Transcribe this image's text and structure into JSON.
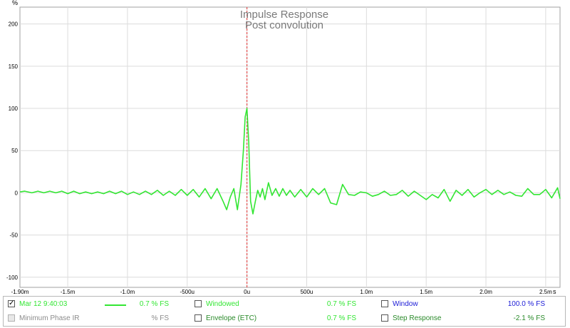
{
  "chart_data": {
    "type": "line",
    "title": "Impulse Response",
    "subtitle": "Post convolution",
    "ylabel": "%",
    "xlabel": "",
    "xunit": "s",
    "xlim": [
      -0.0019,
      0.00262
    ],
    "ylim": [
      -112,
      220
    ],
    "x_ticks": [
      {
        "v": -0.0019,
        "label": "-1.90m"
      },
      {
        "v": -0.0015,
        "label": "-1.5m"
      },
      {
        "v": -0.001,
        "label": "-1.0m"
      },
      {
        "v": -0.0005,
        "label": "-500u"
      },
      {
        "v": 0,
        "label": "0u"
      },
      {
        "v": 0.0005,
        "label": "500u"
      },
      {
        "v": 0.001,
        "label": "1.0m"
      },
      {
        "v": 0.0015,
        "label": "1.5m"
      },
      {
        "v": 0.002,
        "label": "2.0m"
      },
      {
        "v": 0.0025,
        "label": "2.5m"
      }
    ],
    "y_ticks": [
      {
        "v": 200,
        "label": "200"
      },
      {
        "v": 150,
        "label": "150"
      },
      {
        "v": 100,
        "label": "100"
      },
      {
        "v": 50,
        "label": "50"
      },
      {
        "v": 0,
        "label": "0"
      },
      {
        "v": -50,
        "label": "-50"
      },
      {
        "v": -100,
        "label": "-100"
      }
    ],
    "grid": true,
    "marker_x": 0,
    "series": [
      {
        "name": "Mar 12 9:40:03",
        "color": "#33e633",
        "x": [
          -0.0019,
          -0.00186,
          -0.0018,
          -0.00175,
          -0.0017,
          -0.00165,
          -0.0016,
          -0.00155,
          -0.0015,
          -0.00145,
          -0.0014,
          -0.00135,
          -0.0013,
          -0.00125,
          -0.0012,
          -0.00115,
          -0.0011,
          -0.00105,
          -0.001,
          -0.00095,
          -0.0009,
          -0.00085,
          -0.0008,
          -0.00075,
          -0.0007,
          -0.00065,
          -0.0006,
          -0.00055,
          -0.0005,
          -0.00045,
          -0.0004,
          -0.00035,
          -0.0003,
          -0.00025,
          -0.0002,
          -0.00017,
          -0.00014,
          -0.00011,
          -8e-05,
          -5e-05,
          -3e-05,
          -1.5e-05,
          0,
          1.5e-05,
          3e-05,
          5e-05,
          7e-05,
          9e-05,
          0.00011,
          0.00013,
          0.00015,
          0.00018,
          0.00021,
          0.00024,
          0.00027,
          0.0003,
          0.00033,
          0.00036,
          0.0004,
          0.00045,
          0.0005,
          0.00055,
          0.0006,
          0.00065,
          0.0007,
          0.00075,
          0.0008,
          0.00085,
          0.0009,
          0.00095,
          0.001,
          0.00105,
          0.0011,
          0.00115,
          0.0012,
          0.00125,
          0.0013,
          0.00135,
          0.0014,
          0.00145,
          0.0015,
          0.00155,
          0.0016,
          0.00165,
          0.0017,
          0.00175,
          0.0018,
          0.00185,
          0.0019,
          0.00195,
          0.002,
          0.00205,
          0.0021,
          0.00215,
          0.0022,
          0.00225,
          0.0023,
          0.00235,
          0.0024,
          0.00245,
          0.0025,
          0.00255,
          0.0026,
          0.00262
        ],
        "y": [
          1,
          2,
          0,
          2,
          0,
          2,
          0,
          2,
          -1,
          2,
          -1,
          1,
          -1,
          1,
          -1,
          2,
          -1,
          2,
          -2,
          1,
          -2,
          2,
          -2,
          3,
          -3,
          2,
          -3,
          4,
          -3,
          4,
          -5,
          5,
          -7,
          5,
          -10,
          -20,
          -5,
          5,
          -20,
          10,
          50,
          90,
          100,
          60,
          -10,
          -25,
          -10,
          3,
          -5,
          5,
          -8,
          12,
          -3,
          5,
          -4,
          5,
          -3,
          3,
          -5,
          4,
          -5,
          5,
          -2,
          5,
          -12,
          -14,
          10,
          -2,
          -3,
          1,
          0,
          -4,
          -2,
          2,
          -3,
          -2,
          3,
          -4,
          2,
          -3,
          -8,
          -2,
          -6,
          4,
          -10,
          3,
          -3,
          4,
          -5,
          0,
          4,
          -2,
          3,
          -2,
          1,
          -3,
          -4,
          5,
          -2,
          -2,
          4,
          -6,
          6,
          -7
        ]
      }
    ]
  },
  "legend": {
    "row1": {
      "trace_label": "Mar 12 9:40:03",
      "trace_checked": "✓",
      "trace_value": "0.7 % FS",
      "windowed_label": "Windowed",
      "windowed_value": "0.7 % FS",
      "window_label": "Window",
      "window_value": "100.0 % FS"
    },
    "row2": {
      "min_phase_label": "Minimum Phase IR",
      "min_phase_value": "% FS",
      "envelope_label": "Envelope (ETC)",
      "envelope_value": "0.7 % FS",
      "step_label": "Step Response",
      "step_value": "-2.1 % FS"
    },
    "colors": {
      "trace": "#33e633",
      "windowed": "#33e633",
      "window": "#1a1ad6",
      "envelope": "#2a8a2a",
      "step": "#2a8a2a",
      "disabled": "#8c8c8c"
    }
  }
}
